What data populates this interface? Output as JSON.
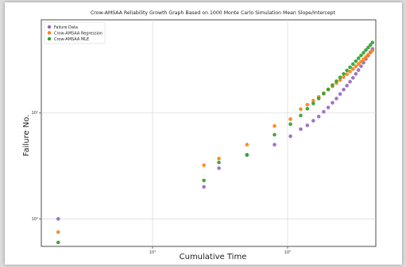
{
  "chart_data": {
    "type": "scatter",
    "title": "Crow-AMSAA Reliability Growth Graph Based on 1000 Monte Carlo Simulation Mean Slope/Intercept",
    "xlabel": "Cumulative Time",
    "ylabel": "Failure  No.",
    "x_scale": "log",
    "y_scale": "log",
    "xlim": [
      1.5,
      450
    ],
    "ylim": [
      0.55,
      75
    ],
    "grid": true,
    "legend_position": "top-left",
    "x_ticks": [
      {
        "value": 10,
        "label": "10¹"
      },
      {
        "value": 100,
        "label": "10²"
      }
    ],
    "y_ticks": [
      {
        "value": 1,
        "label": "10⁰"
      },
      {
        "value": 10,
        "label": "10¹"
      }
    ],
    "series": [
      {
        "name": "Failure Data",
        "color": "#9467bd",
        "points": [
          [
            2,
            1
          ],
          [
            24,
            2
          ],
          [
            31,
            3
          ],
          [
            50,
            4
          ],
          [
            80,
            5
          ],
          [
            105,
            6
          ],
          [
            125,
            7
          ],
          [
            140,
            7.6
          ],
          [
            155,
            8.4
          ],
          [
            170,
            9.2
          ],
          [
            185,
            10.2
          ],
          [
            200,
            11.2
          ],
          [
            215,
            12.4
          ],
          [
            230,
            13.6
          ],
          [
            245,
            15
          ],
          [
            260,
            16.5
          ],
          [
            275,
            18
          ],
          [
            290,
            19.6
          ],
          [
            305,
            21.3
          ],
          [
            320,
            23.2
          ],
          [
            335,
            25.2
          ],
          [
            350,
            27.4
          ],
          [
            365,
            29.6
          ],
          [
            380,
            32
          ],
          [
            395,
            34.5
          ],
          [
            410,
            37.2
          ],
          [
            425,
            40
          ]
        ]
      },
      {
        "name": "Crow-AMSAA Regression",
        "color": "#ff7f0e",
        "points": [
          [
            2,
            0.75
          ],
          [
            24,
            3.2
          ],
          [
            31,
            3.7
          ],
          [
            50,
            5
          ],
          [
            80,
            7.5
          ],
          [
            105,
            8.7
          ],
          [
            125,
            10.8
          ],
          [
            140,
            11.9
          ],
          [
            155,
            13
          ],
          [
            170,
            14.1
          ],
          [
            185,
            15.3
          ],
          [
            200,
            16.5
          ],
          [
            215,
            17.7
          ],
          [
            230,
            19
          ],
          [
            245,
            20.3
          ],
          [
            260,
            21.6
          ],
          [
            275,
            23
          ],
          [
            290,
            24.4
          ],
          [
            305,
            25.8
          ],
          [
            320,
            27.3
          ],
          [
            335,
            28.8
          ],
          [
            350,
            30.3
          ],
          [
            365,
            31.9
          ],
          [
            380,
            33.5
          ],
          [
            395,
            35.1
          ],
          [
            410,
            36.8
          ],
          [
            425,
            38.5
          ]
        ]
      },
      {
        "name": "Crow-AMSAA MLE",
        "color": "#2ca02c",
        "points": [
          [
            2,
            0.6
          ],
          [
            24,
            2.3
          ],
          [
            31,
            3.4
          ],
          [
            50,
            4
          ],
          [
            80,
            6.2
          ],
          [
            105,
            7.8
          ],
          [
            125,
            9.4
          ],
          [
            140,
            10.9
          ],
          [
            155,
            12.2
          ],
          [
            170,
            13.6
          ],
          [
            185,
            15.1
          ],
          [
            200,
            16.6
          ],
          [
            215,
            18.2
          ],
          [
            230,
            19.8
          ],
          [
            245,
            21.5
          ],
          [
            260,
            23.2
          ],
          [
            275,
            25
          ],
          [
            290,
            26.8
          ],
          [
            305,
            28.7
          ],
          [
            320,
            30.6
          ],
          [
            335,
            32.6
          ],
          [
            350,
            34.6
          ],
          [
            365,
            36.7
          ],
          [
            380,
            38.9
          ],
          [
            395,
            41.1
          ],
          [
            410,
            43.4
          ],
          [
            425,
            45.8
          ]
        ]
      }
    ]
  }
}
